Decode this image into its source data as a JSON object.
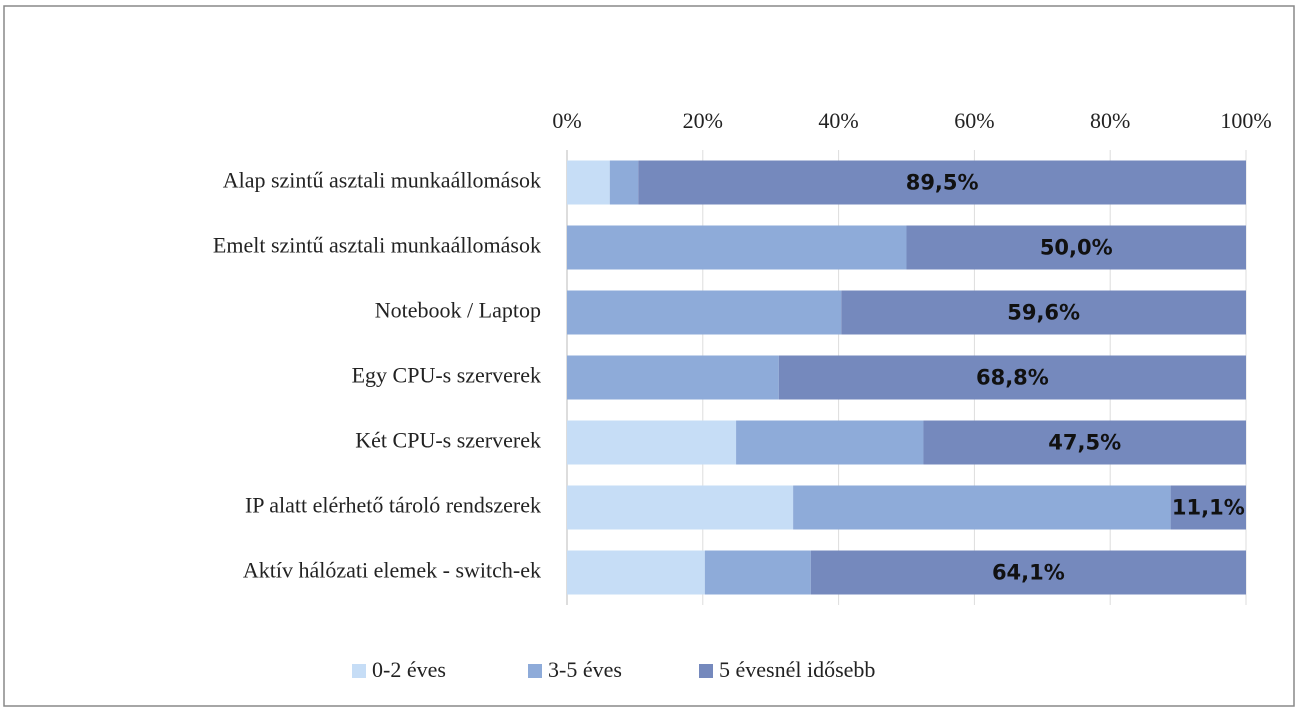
{
  "chart_data": {
    "type": "stacked_barh",
    "categories": [
      "Alap szintű asztali munkaállomások",
      "Emelt szintű asztali munkaállomások",
      "Notebook / Laptop",
      "Egy CPU-s szerverek",
      "Két CPU-s szerverek",
      "IP alatt elérhető tároló rendszerek",
      "Aktív hálózati elemek - switch-ek"
    ],
    "series": [
      {
        "name": "0-2 éves",
        "color": "#c6ddf6",
        "values": [
          6.3,
          0,
          0,
          0,
          24.9,
          33.3,
          20.3
        ]
      },
      {
        "name": "3-5 éves",
        "color": "#8eabd9",
        "values": [
          4.2,
          50.0,
          40.4,
          31.2,
          27.6,
          55.6,
          15.6
        ]
      },
      {
        "name": "5 évesnél idősebb",
        "color": "#7589bd",
        "values": [
          89.5,
          50.0,
          59.6,
          68.8,
          47.5,
          11.1,
          64.1
        ],
        "value_labels": [
          "89,5%",
          "50,0%",
          "59,6%",
          "68,8%",
          "47,5%",
          "11,1%",
          "64,1%"
        ]
      }
    ],
    "xlim": [
      0,
      100
    ],
    "xticks": [
      {
        "value": 0,
        "label": "0%"
      },
      {
        "value": 20,
        "label": "20%"
      },
      {
        "value": 40,
        "label": "40%"
      },
      {
        "value": 60,
        "label": "60%"
      },
      {
        "value": 80,
        "label": "80%"
      },
      {
        "value": 100,
        "label": "100%"
      }
    ],
    "grid": true,
    "legend": "bottom"
  }
}
